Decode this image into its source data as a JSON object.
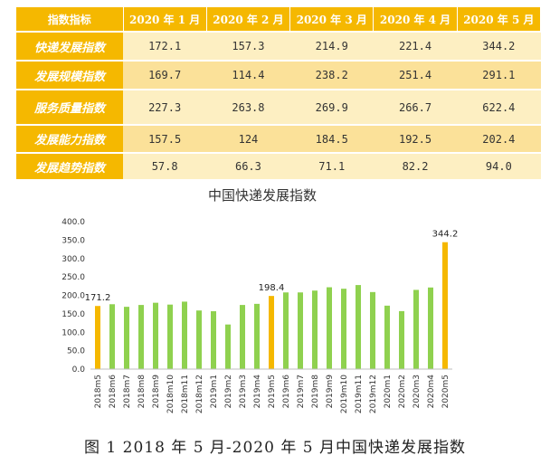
{
  "table": {
    "columns": [
      "指数指标",
      "2020 年 1 月",
      "2020 年 2 月",
      "2020 年 3 月",
      "2020 年 4 月",
      "2020 年 5 月"
    ],
    "rows": [
      {
        "label": "快递发展指数",
        "values": [
          "172.1",
          "157.3",
          "214.9",
          "221.4",
          "344.2"
        ]
      },
      {
        "label": "发展规模指数",
        "values": [
          "169.7",
          "114.4",
          "238.2",
          "251.4",
          "291.1"
        ]
      },
      {
        "label": "服务质量指数",
        "values": [
          "227.3",
          "263.8",
          "269.9",
          "266.7",
          "622.4"
        ]
      },
      {
        "label": "发展能力指数",
        "values": [
          "157.5",
          "124",
          "184.5",
          "192.5",
          "202.4"
        ]
      },
      {
        "label": "发展趋势指数",
        "values": [
          "57.8",
          "66.3",
          "71.1",
          "82.2",
          "94.0"
        ]
      }
    ]
  },
  "chart_data": {
    "type": "bar",
    "title": "中国快递发展指数",
    "xlabel": "",
    "ylabel": "",
    "ylim": [
      0,
      400
    ],
    "yticks": [
      "0.0",
      "50.0",
      "100.0",
      "150.0",
      "200.0",
      "250.0",
      "300.0",
      "350.0",
      "400.0"
    ],
    "categories": [
      "2018m5",
      "2018m6",
      "2018m7",
      "2018m8",
      "2018m9",
      "2018m10",
      "2018m11",
      "2018m12",
      "2019m1",
      "2019m2",
      "2019m3",
      "2019m4",
      "2019m5",
      "2019m6",
      "2019m7",
      "2019m8",
      "2019m9",
      "2019m10",
      "2019m11",
      "2019m12",
      "2020m1",
      "2020m2",
      "2020m3",
      "2020m4",
      "2020m5"
    ],
    "values": [
      171.2,
      176,
      169,
      174,
      180,
      175,
      183,
      159,
      157,
      121,
      174,
      177,
      198.4,
      208,
      208,
      213,
      222,
      218,
      228,
      209,
      172.1,
      157.3,
      214.9,
      221.4,
      344.2
    ],
    "highlight": [
      "2018m5",
      "2019m5",
      "2020m5"
    ],
    "data_labels": [
      {
        "category": "2018m5",
        "text": "171.2"
      },
      {
        "category": "2019m5",
        "text": "198.4"
      },
      {
        "category": "2020m5",
        "text": "344.2"
      }
    ],
    "colors": {
      "normal": "#8fd14f",
      "highlight": "#f5b800"
    },
    "grid": false
  },
  "caption": "图 1  2018 年 5 月-2020 年 5 月中国快递发展指数"
}
